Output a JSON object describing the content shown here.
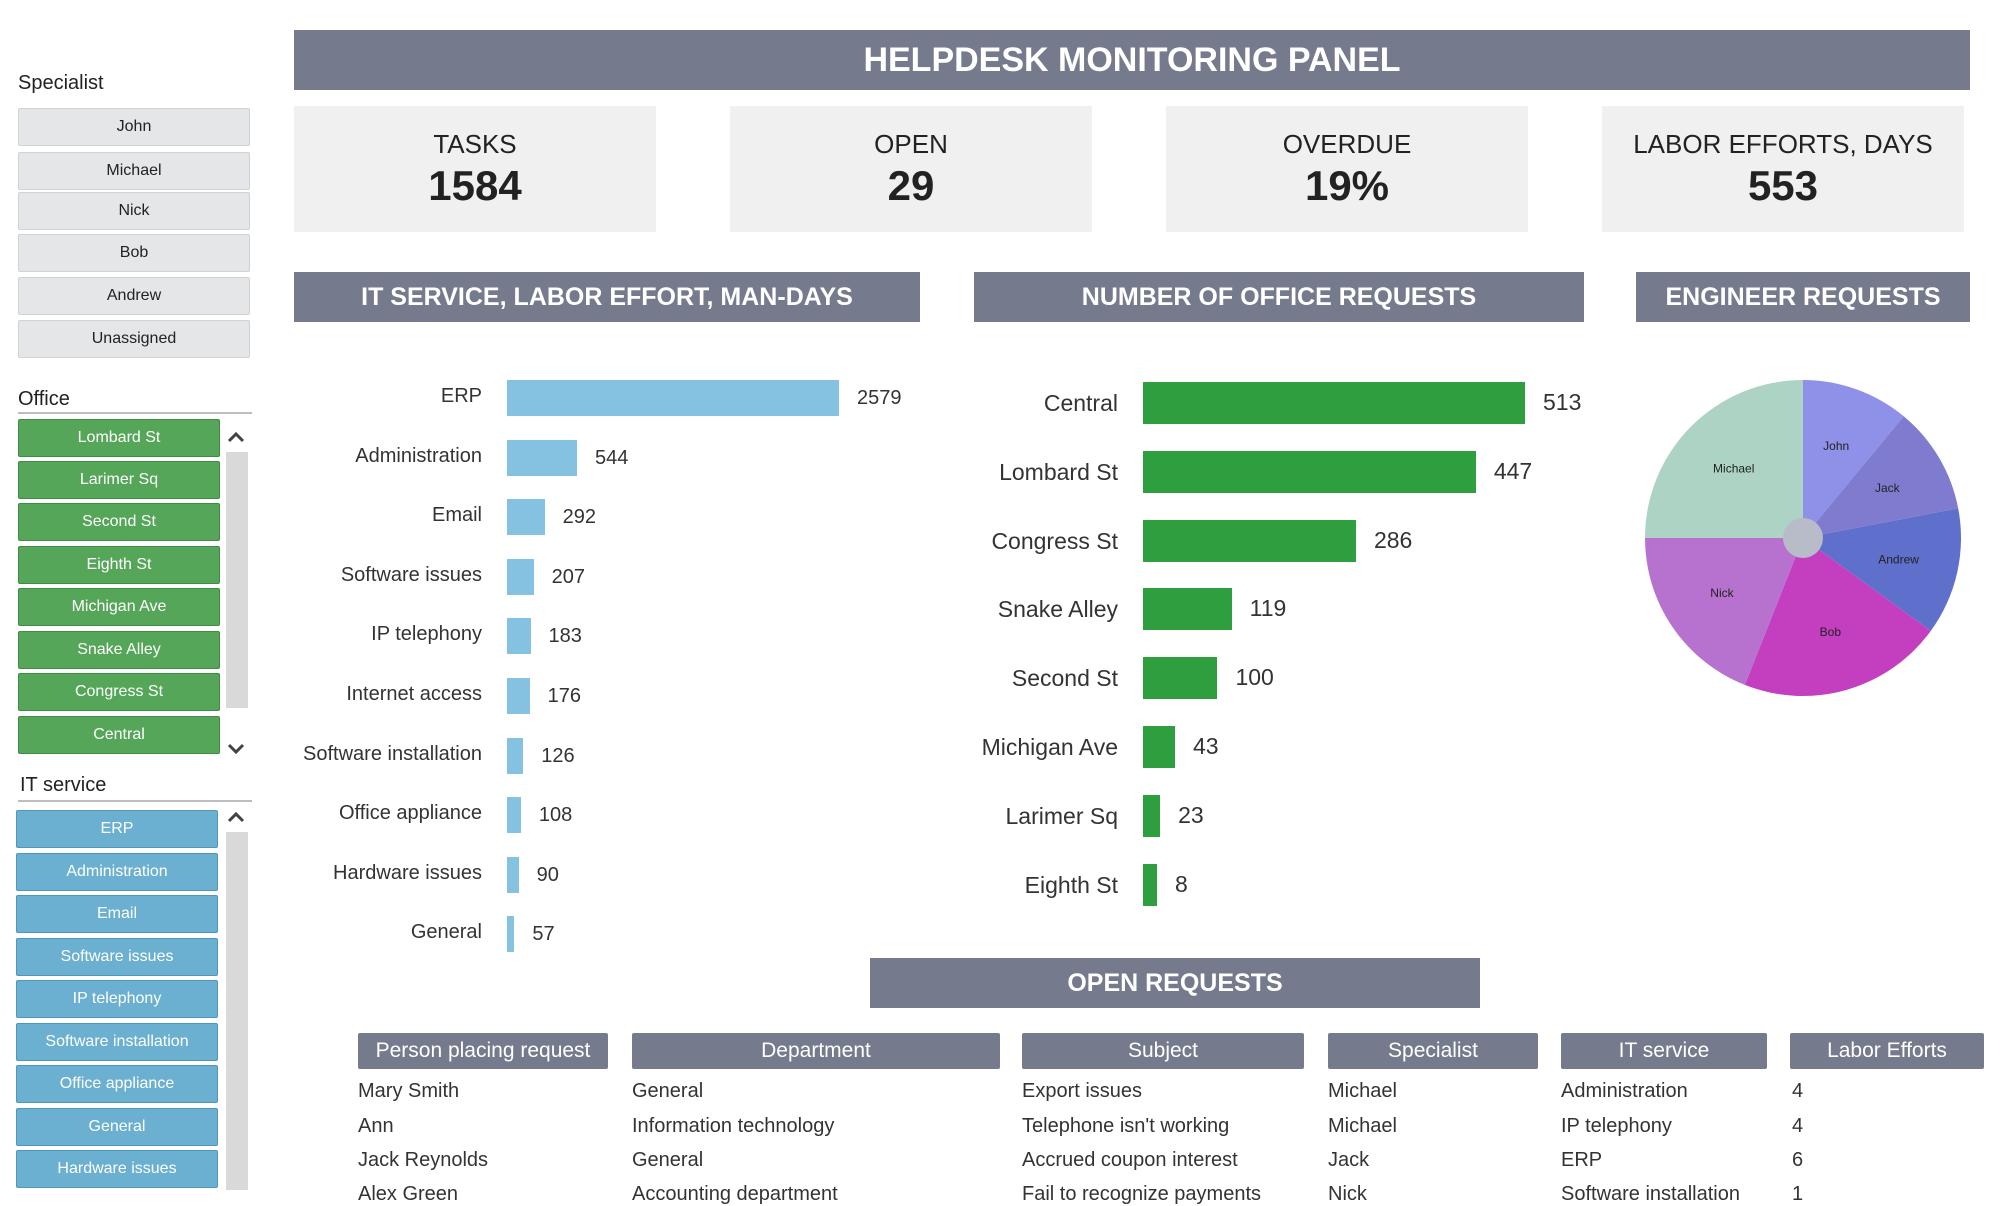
{
  "header": {
    "title": "HELPDESK MONITORING PANEL"
  },
  "sidebar": {
    "specialist": {
      "title": "Specialist",
      "items": [
        "John",
        "Michael",
        "Nick",
        "Bob",
        "Andrew",
        "Unassigned"
      ]
    },
    "office": {
      "title": "Office",
      "items": [
        "Lombard St",
        "Larimer Sq",
        "Second St",
        "Eighth St",
        "Michigan Ave",
        "Snake Alley",
        "Congress St",
        "Central"
      ]
    },
    "it_service": {
      "title": "IT service",
      "items": [
        "ERP",
        "Administration",
        "Email",
        "Software issues",
        "IP telephony",
        "Software installation",
        "Office appliance",
        "General",
        "Hardware issues"
      ]
    }
  },
  "kpis": [
    {
      "label": "TASKS",
      "value": "1584"
    },
    {
      "label": "OPEN",
      "value": "29"
    },
    {
      "label": "OVERDUE",
      "value": "19%"
    },
    {
      "label": "LABOR EFFORTS, DAYS",
      "value": "553"
    }
  ],
  "sections": {
    "it_service": "IT SERVICE, LABOR EFFORT, MAN-DAYS",
    "office": "NUMBER OF OFFICE REQUESTS",
    "engineer": "ENGINEER REQUESTS",
    "open": "OPEN REQUESTS"
  },
  "chart_data": [
    {
      "type": "bar",
      "orientation": "horizontal",
      "title": "IT SERVICE, LABOR EFFORT, MAN-DAYS",
      "categories": [
        "ERP",
        "Administration",
        "Email",
        "Software issues",
        "IP telephony",
        "Internet access",
        "Software installation",
        "Office appliance",
        "Hardware issues",
        "General"
      ],
      "values": [
        2579,
        544,
        292,
        207,
        183,
        176,
        126,
        108,
        90,
        57
      ],
      "color": "#85c1e0"
    },
    {
      "type": "bar",
      "orientation": "horizontal",
      "title": "NUMBER OF OFFICE REQUESTS",
      "categories": [
        "Central",
        "Lombard St",
        "Congress St",
        "Snake Alley",
        "Second St",
        "Michigan Ave",
        "Larimer Sq",
        "Eighth St"
      ],
      "values": [
        513,
        447,
        286,
        119,
        100,
        43,
        23,
        8
      ],
      "color": "#2f9e3f"
    },
    {
      "type": "pie",
      "title": "ENGINEER REQUESTS",
      "slices": [
        {
          "label": "John",
          "value": 11,
          "color": "#8f90e8"
        },
        {
          "label": "Jack",
          "value": 11,
          "color": "#7f7ccf"
        },
        {
          "label": "Andrew",
          "value": 13,
          "color": "#5e6fcc"
        },
        {
          "label": "Bob",
          "value": 21,
          "color": "#c33fbf"
        },
        {
          "label": "Nick",
          "value": 19,
          "color": "#b772cf"
        },
        {
          "label": "Michael",
          "value": 25,
          "color": "#acd3c4"
        }
      ]
    }
  ],
  "table": {
    "columns": [
      "Person placing request",
      "Department",
      "Subject",
      "Specialist",
      "IT service",
      "Labor Efforts"
    ],
    "rows": [
      [
        "Mary Smith",
        "General",
        "Export issues",
        "Michael",
        "Administration",
        "4"
      ],
      [
        "Ann",
        "Information technology",
        "Telephone isn't working",
        "Michael",
        "IP telephony",
        "4"
      ],
      [
        "Jack Reynolds",
        "General",
        "Accrued coupon interest",
        "Jack",
        "ERP",
        "6"
      ],
      [
        "Alex Green",
        "Accounting department",
        "Fail to recognize payments",
        "Nick",
        "Software installation",
        "1"
      ]
    ]
  }
}
